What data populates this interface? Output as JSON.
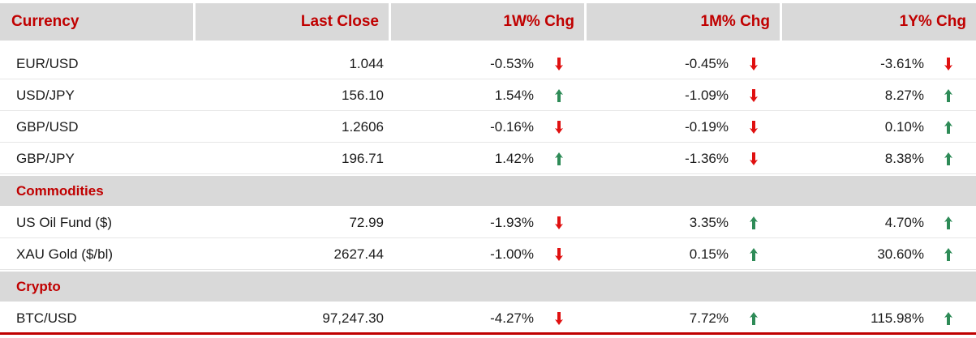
{
  "header": {
    "currency": "Currency",
    "last_close": "Last Close",
    "chg_1w": "1W% Chg",
    "chg_1m": "1M% Chg",
    "chg_1y": "1Y% Chg"
  },
  "colors": {
    "accent": "#c00000",
    "header_bg": "#d9d9d9",
    "up": "#2e8b57",
    "down": "#e01010"
  },
  "rows": [
    {
      "name": "EUR/USD",
      "close": "1.044",
      "w1": "-0.53%",
      "w1_dir": "down",
      "m1": "-0.45%",
      "m1_dir": "down",
      "y1": "-3.61%",
      "y1_dir": "down"
    },
    {
      "name": "USD/JPY",
      "close": "156.10",
      "w1": "1.54%",
      "w1_dir": "up",
      "m1": "-1.09%",
      "m1_dir": "down",
      "y1": "8.27%",
      "y1_dir": "up"
    },
    {
      "name": "GBP/USD",
      "close": "1.2606",
      "w1": "-0.16%",
      "w1_dir": "down",
      "m1": "-0.19%",
      "m1_dir": "down",
      "y1": "0.10%",
      "y1_dir": "up"
    },
    {
      "name": "GBP/JPY",
      "close": "196.71",
      "w1": "1.42%",
      "w1_dir": "up",
      "m1": "-1.36%",
      "m1_dir": "down",
      "y1": "8.38%",
      "y1_dir": "up"
    },
    {
      "name": "US Oil Fund ($)",
      "close": "72.99",
      "w1": "-1.93%",
      "w1_dir": "down",
      "m1": "3.35%",
      "m1_dir": "up",
      "y1": "4.70%",
      "y1_dir": "up"
    },
    {
      "name": "XAU Gold ($/bl)",
      "close": "2627.44",
      "w1": "-1.00%",
      "w1_dir": "down",
      "m1": "0.15%",
      "m1_dir": "up",
      "y1": "30.60%",
      "y1_dir": "up"
    },
    {
      "name": "BTC/USD",
      "close": "97,247.30",
      "w1": "-4.27%",
      "w1_dir": "down",
      "m1": "7.72%",
      "m1_dir": "up",
      "y1": "115.98%",
      "y1_dir": "up"
    }
  ],
  "sections": {
    "commodities": "Commodities",
    "crypto": "Crypto"
  }
}
